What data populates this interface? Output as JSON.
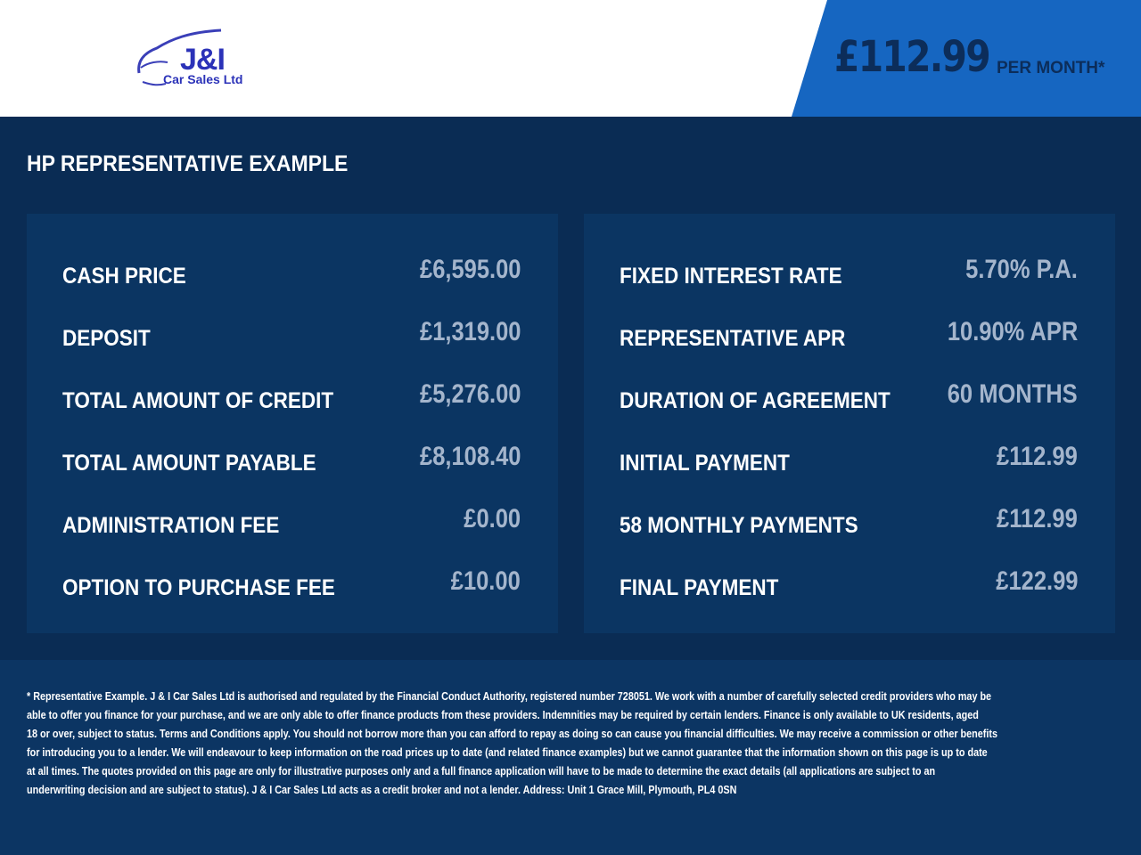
{
  "header": {
    "logo_text": "J&I",
    "logo_subtext": "Car Sales Ltd",
    "monthly_price": "£112.99",
    "per_month_label": "PER MONTH*"
  },
  "colors": {
    "accent": "#1666c1",
    "background": "#0a2c54",
    "panel": "#0b3562",
    "value_text": "#a4b5cc"
  },
  "title": "HP REPRESENTATIVE EXAMPLE",
  "left_panel": [
    {
      "label": "CASH PRICE",
      "value": "£6,595.00"
    },
    {
      "label": "DEPOSIT",
      "value": "£1,319.00"
    },
    {
      "label": "TOTAL AMOUNT OF CREDIT",
      "value": "£5,276.00"
    },
    {
      "label": "TOTAL AMOUNT PAYABLE",
      "value": "£8,108.40"
    },
    {
      "label": "ADMINISTRATION FEE",
      "value": "£0.00"
    },
    {
      "label": "OPTION TO PURCHASE FEE",
      "value": "£10.00"
    }
  ],
  "right_panel": [
    {
      "label": "FIXED INTEREST RATE",
      "value": "5.70% P.A."
    },
    {
      "label": "REPRESENTATIVE APR",
      "value": "10.90% APR"
    },
    {
      "label": "DURATION OF AGREEMENT",
      "value": "60 MONTHS"
    },
    {
      "label": "INITIAL PAYMENT",
      "value": "£112.99"
    },
    {
      "label": "58 MONTHLY PAYMENTS",
      "value": "£112.99"
    },
    {
      "label": "FINAL PAYMENT",
      "value": "£122.99"
    }
  ],
  "disclaimer_lines": [
    "* Representative Example. J & I Car Sales Ltd is authorised and regulated by the Financial Conduct Authority, registered number 728051. We work with a number of carefully selected credit providers who may be",
    "able to offer you finance for your purchase, and we are only able to offer finance products from these providers. Indemnities may be required by certain lenders. Finance is only available to UK residents, aged",
    "18 or over, subject to status. Terms and Conditions apply. You should not borrow more than you can afford to repay as doing so can cause you financial difficulties. We may receive a commission or other benefits",
    "for introducing you to a lender. We will endeavour to keep information on the road prices up to date (and related finance examples) but we cannot guarantee that the information shown on this page is up to date",
    "at all times. The quotes provided on this page are only for illustrative purposes only and a full finance application will have to be made to determine the exact details (all applications are subject to an",
    "underwriting decision and are subject to status). J & I Car Sales Ltd acts as a credit broker and not a lender. Address: Unit 1 Grace Mill, Plymouth, PL4 0SN"
  ]
}
